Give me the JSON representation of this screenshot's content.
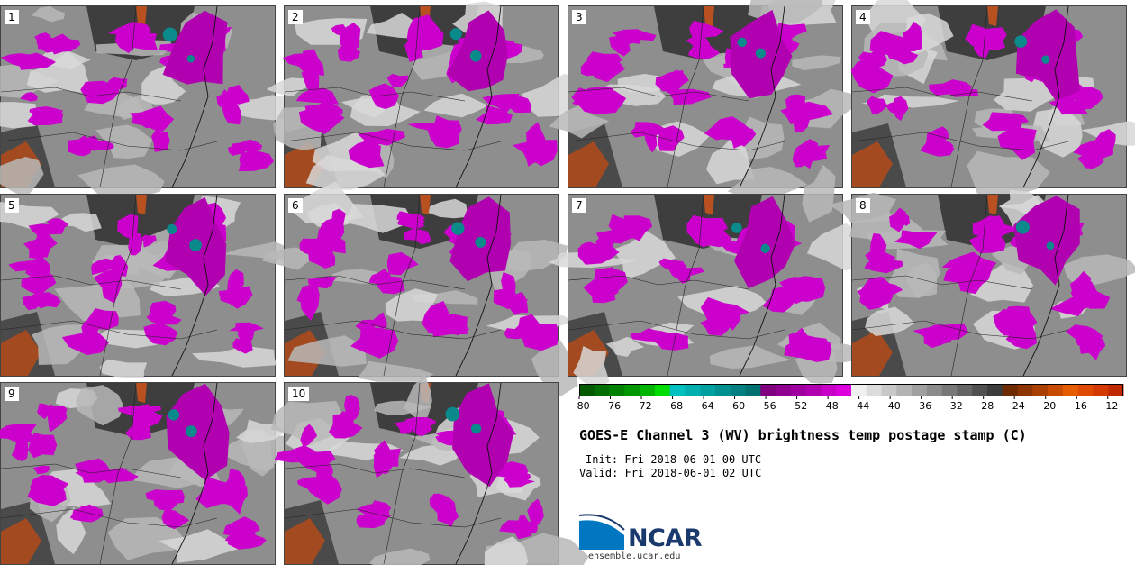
{
  "panels": [
    {
      "label": "1"
    },
    {
      "label": "2"
    },
    {
      "label": "3"
    },
    {
      "label": "4"
    },
    {
      "label": "5"
    },
    {
      "label": "6"
    },
    {
      "label": "7"
    },
    {
      "label": "8"
    },
    {
      "label": "9"
    },
    {
      "label": "10"
    }
  ],
  "colorbar": {
    "values": [
      -80,
      -78,
      -76,
      -74,
      -72,
      -70,
      -68,
      -66,
      -64,
      -62,
      -60,
      -58,
      -56,
      -54,
      -52,
      -50,
      -48,
      -46,
      -44,
      -42,
      -40,
      -38,
      -36,
      -34,
      -32,
      -30,
      -28,
      -26,
      -24,
      -22,
      -20,
      -18,
      -16,
      -14,
      -12,
      -10
    ],
    "colors": [
      "#005a00",
      "#006e00",
      "#008200",
      "#009600",
      "#00b400",
      "#00dc00",
      "#00c0c0",
      "#00b0b0",
      "#00a0a0",
      "#009090",
      "#008080",
      "#007070",
      "#800080",
      "#900090",
      "#a000a0",
      "#b000b0",
      "#c800c8",
      "#dc00dc",
      "#f0f0f0",
      "#dcdcdc",
      "#c8c8c8",
      "#b4b4b4",
      "#a0a0a0",
      "#8c8c8c",
      "#787878",
      "#646464",
      "#505050",
      "#3c3c3c",
      "#6e2a00",
      "#8c3500",
      "#aa4000",
      "#c84c00",
      "#e65c00",
      "#e04a00",
      "#d43a00",
      "#c02800"
    ],
    "tick_labels": [
      "-80",
      "-76",
      "-72",
      "-68",
      "-64",
      "-60",
      "-56",
      "-52",
      "-48",
      "-44",
      "-40",
      "-36",
      "-32",
      "-28",
      "-24",
      "-20",
      "-16",
      "-12"
    ]
  },
  "title": "GOES-E Channel 3 (WV) brightness temp postage stamp (C)",
  "init_label": "Init: Fri 2018-06-01 00 UTC",
  "valid_label": "Valid: Fri 2018-06-01 02 UTC",
  "logo": {
    "text": "NCAR",
    "url": "ensemble.ucar.edu",
    "brand_color": "#1a3a6e",
    "accent_color": "#0077c0"
  }
}
